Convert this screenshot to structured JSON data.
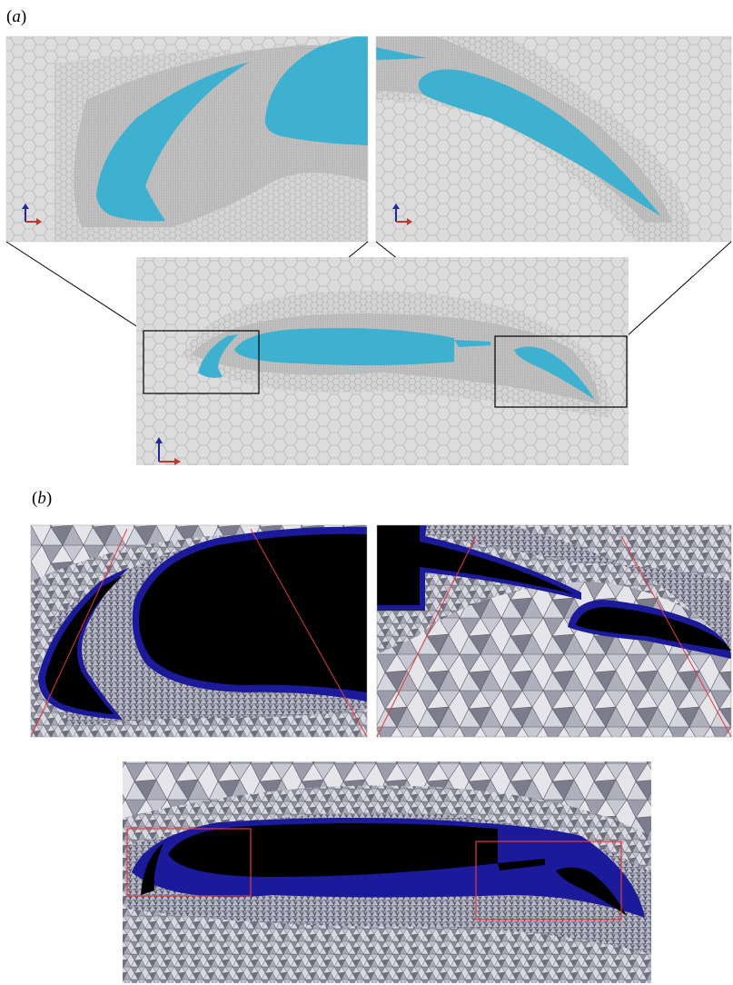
{
  "figure": {
    "panel_a": {
      "label_open": "(",
      "label_letter": "a",
      "label_close": ")",
      "mesh_type": "polyhedral",
      "body_color": "#3db1cf",
      "mesh_background": "#dcdcdc",
      "mesh_line_color": "#b4b4b4",
      "zoom_box_color": "#000000",
      "axis_colors": {
        "vertical": "#1f2b9c",
        "horizontal": "#c0392b"
      }
    },
    "panel_b": {
      "label_open": "(",
      "label_letter": "b",
      "label_close": ")",
      "mesh_type": "tetrahedral",
      "body_color": "#000000",
      "boundary_layer_color": "#1a1a9a",
      "mesh_background": "#a8a8b8",
      "zoom_box_color": "#e23b3b"
    }
  }
}
